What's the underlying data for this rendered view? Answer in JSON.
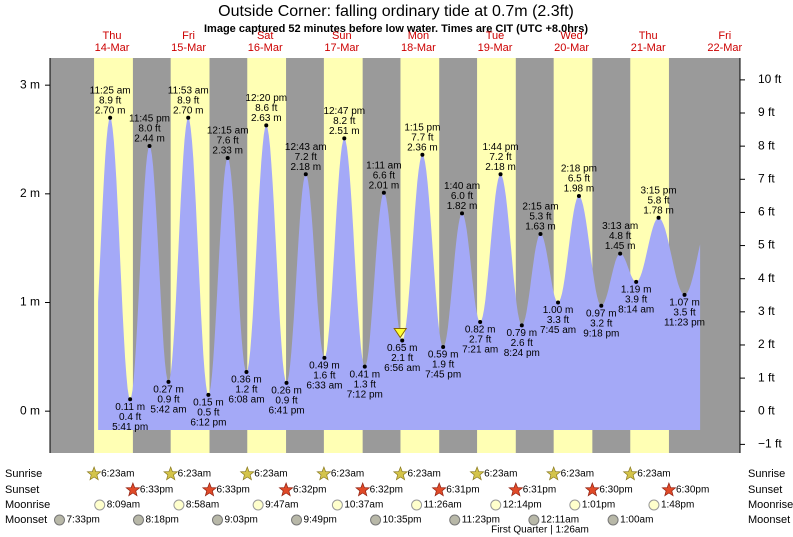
{
  "chart_data": {
    "type": "area",
    "title": "Outside Corner: falling  ordinary tide at 0.7m (2.3ft)",
    "subtitle": "Image captured 52 minutes before low water. Times are CIT (UTC +8.0hrs)",
    "ylim": [
      -0.385,
      3.25
    ],
    "yticks": [
      {
        "value": 0,
        "label": "0 m"
      },
      {
        "value": 1,
        "label": "1 m"
      },
      {
        "value": 2,
        "label": "2 m"
      },
      {
        "value": 3,
        "label": "3 m"
      }
    ],
    "y2lim": [
      -1.26,
      10.66
    ],
    "y2ticks": [
      {
        "value": -1,
        "label": "−1 ft"
      },
      {
        "value": 0,
        "label": "0 ft"
      },
      {
        "value": 1,
        "label": "1 ft"
      },
      {
        "value": 2,
        "label": "2 ft"
      },
      {
        "value": 3,
        "label": "3 ft"
      },
      {
        "value": 4,
        "label": "4 ft"
      },
      {
        "value": 5,
        "label": "5 ft"
      },
      {
        "value": 6,
        "label": "6 ft"
      },
      {
        "value": 7,
        "label": "7 ft"
      },
      {
        "value": 8,
        "label": "8 ft"
      },
      {
        "value": 9,
        "label": "9 ft"
      },
      {
        "value": 10,
        "label": "10 ft"
      }
    ],
    "color": "#a4a9f7",
    "night_color": "#9a9a9a",
    "day_color": "#ffffb4",
    "day_label_color": "#cc0000",
    "days": [
      {
        "weekday": "Thu",
        "date": "14-Mar",
        "extremes": [
          {
            "time": "11:25 am",
            "ft": "8.9 ft",
            "value": 2.7,
            "value_label": "2.70 m"
          },
          {
            "time": "5:41 pm",
            "ft": "0.4 ft",
            "value": 0.11,
            "value_label": "0.11 m"
          },
          {
            "time": "11:45 pm",
            "ft": "8.0 ft",
            "value": 2.44,
            "value_label": "2.44 m"
          }
        ]
      },
      {
        "weekday": "Fri",
        "date": "15-Mar",
        "extremes": [
          {
            "time": "5:42 am",
            "ft": "0.9 ft",
            "value": 0.27,
            "value_label": "0.27 m"
          },
          {
            "time": "11:53 am",
            "ft": "8.9 ft",
            "value": 2.7,
            "value_label": "2.70 m"
          },
          {
            "time": "6:12 pm",
            "ft": "0.5 ft",
            "value": 0.15,
            "value_label": "0.15 m"
          }
        ]
      },
      {
        "weekday": "Sat",
        "date": "16-Mar",
        "extremes": [
          {
            "time": "12:15 am",
            "ft": "7.6 ft",
            "value": 2.33,
            "value_label": "2.33 m"
          },
          {
            "time": "6:08 am",
            "ft": "1.2 ft",
            "value": 0.36,
            "value_label": "0.36 m"
          },
          {
            "time": "12:20 pm",
            "ft": "8.6 ft",
            "value": 2.63,
            "value_label": "2.63 m"
          },
          {
            "time": "6:41 pm",
            "ft": "0.9 ft",
            "value": 0.26,
            "value_label": "0.26 m"
          }
        ]
      },
      {
        "weekday": "Sun",
        "date": "17-Mar",
        "extremes": [
          {
            "time": "12:43 am",
            "ft": "7.2 ft",
            "value": 2.18,
            "value_label": "2.18 m"
          },
          {
            "time": "6:33 am",
            "ft": "1.6 ft",
            "value": 0.49,
            "value_label": "0.49 m"
          },
          {
            "time": "12:47 pm",
            "ft": "8.2 ft",
            "value": 2.51,
            "value_label": "2.51 m"
          },
          {
            "time": "7:12 pm",
            "ft": "1.3 ft",
            "value": 0.41,
            "value_label": "0.41 m"
          }
        ]
      },
      {
        "weekday": "Mon",
        "date": "18-Mar",
        "extremes": [
          {
            "time": "1:11 am",
            "ft": "6.6 ft",
            "value": 2.01,
            "value_label": "2.01 m"
          },
          {
            "time": "6:56 am",
            "ft": "2.1 ft",
            "value": 0.65,
            "value_label": "0.65 m"
          },
          {
            "time": "1:15 pm",
            "ft": "7.7 ft",
            "value": 2.36,
            "value_label": "2.36 m"
          },
          {
            "time": "7:45 pm",
            "ft": "1.9 ft",
            "value": 0.59,
            "value_label": "0.59 m"
          }
        ]
      },
      {
        "weekday": "Tue",
        "date": "19-Mar",
        "extremes": [
          {
            "time": "1:40 am",
            "ft": "6.0 ft",
            "value": 1.82,
            "value_label": "1.82 m"
          },
          {
            "time": "7:21 am",
            "ft": "2.7 ft",
            "value": 0.82,
            "value_label": "0.82 m"
          },
          {
            "time": "1:44 pm",
            "ft": "7.2 ft",
            "value": 2.18,
            "value_label": "2.18 m"
          },
          {
            "time": "8:24 pm",
            "ft": "2.6 ft",
            "value": 0.79,
            "value_label": "0.79 m"
          }
        ]
      },
      {
        "weekday": "Wed",
        "date": "20-Mar",
        "extremes": [
          {
            "time": "2:15 am",
            "ft": "5.3 ft",
            "value": 1.63,
            "value_label": "1.63 m"
          },
          {
            "time": "7:45 am",
            "ft": "3.3 ft",
            "value": 1.0,
            "value_label": "1.00 m"
          },
          {
            "time": "2:18 pm",
            "ft": "6.5 ft",
            "value": 1.98,
            "value_label": "1.98 m"
          },
          {
            "time": "9:18 pm",
            "ft": "3.2 ft",
            "value": 0.97,
            "value_label": "0.97 m"
          }
        ]
      },
      {
        "weekday": "Thu",
        "date": "21-Mar",
        "extremes": [
          {
            "time": "3:13 am",
            "ft": "4.8 ft",
            "value": 1.45,
            "value_label": "1.45 m"
          },
          {
            "time": "8:14 am",
            "ft": "3.9 ft",
            "value": 1.19,
            "value_label": "1.19 m"
          },
          {
            "time": "3:15 pm",
            "ft": "5.8 ft",
            "value": 1.78,
            "value_label": "1.78 m"
          },
          {
            "time": "11:23 pm",
            "ft": "3.5 ft",
            "value": 1.07,
            "value_label": "1.07 m"
          }
        ]
      },
      {
        "weekday": "Fri",
        "date": "22-Mar",
        "extremes": []
      }
    ],
    "almanac": [
      {
        "label": "Sunrise",
        "times": [
          "6:23am",
          "6:23am",
          "6:23am",
          "6:23am",
          "6:23am",
          "6:23am",
          "6:23am",
          "6:23am"
        ]
      },
      {
        "label": "Sunset",
        "times": [
          "6:33pm",
          "6:33pm",
          "6:32pm",
          "6:32pm",
          "6:31pm",
          "6:31pm",
          "6:30pm",
          "6:30pm"
        ]
      },
      {
        "label": "Moonrise",
        "times": [
          "8:09am",
          "8:58am",
          "9:47am",
          "10:37am",
          "11:26am",
          "12:14pm",
          "1:01pm",
          "1:48pm"
        ]
      },
      {
        "label": "Moonset",
        "times": [
          "7:33pm",
          "8:18pm",
          "9:03pm",
          "9:49pm",
          "10:35pm",
          "11:23pm",
          "12:11am",
          "1:00am"
        ]
      }
    ],
    "moon_phase": "First Quarter | 1:26am"
  }
}
